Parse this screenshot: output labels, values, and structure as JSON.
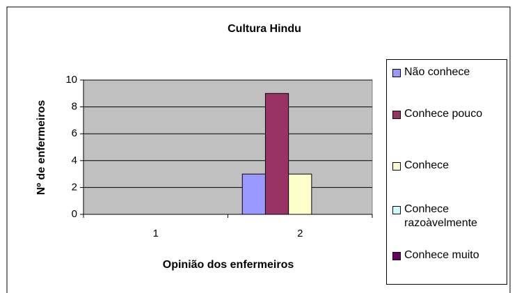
{
  "chart_data": {
    "type": "bar",
    "title": "Cultura Hindu",
    "x_label": "Opinião dos enfermeiros",
    "y_label": "Nº de enfermeiros",
    "categories": [
      "1",
      "2"
    ],
    "series": [
      {
        "name": "Não conhece",
        "color": "#9999ff",
        "values": [
          0,
          3
        ]
      },
      {
        "name": "Conhece pouco",
        "color": "#993366",
        "values": [
          0,
          9
        ]
      },
      {
        "name": "Conhece",
        "color": "#ffffcc",
        "values": [
          0,
          3
        ]
      },
      {
        "name": "Conhece razoàvelmente",
        "color": "#ccffff",
        "values": [
          0,
          0
        ]
      },
      {
        "name": "Conhece muito",
        "color": "#660066",
        "values": [
          0,
          0
        ]
      }
    ],
    "ylim": [
      0,
      10
    ],
    "yticks": [
      0,
      2,
      4,
      6,
      8,
      10
    ],
    "grid": true,
    "plot_background": "#c0c0c0",
    "legend": "right"
  }
}
